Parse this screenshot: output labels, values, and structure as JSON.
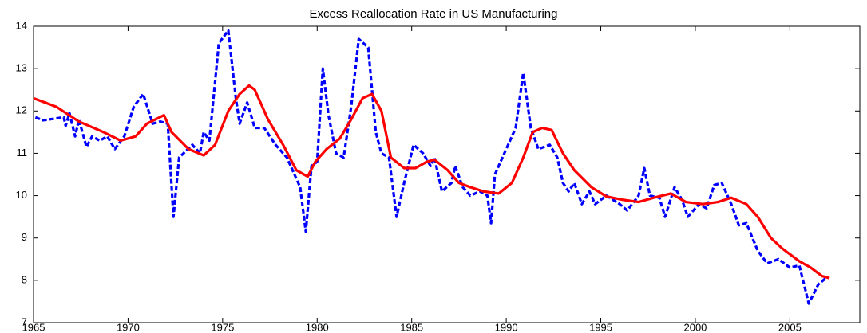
{
  "chart_data": {
    "type": "line",
    "title": "Excess Reallocation Rate in US Manufacturing",
    "xlim": [
      1965,
      2008.7
    ],
    "xticks": [
      1965,
      1970,
      1975,
      1980,
      1985,
      1990,
      1995,
      2000,
      2005
    ],
    "ylim": [
      7,
      14
    ],
    "yticks": [
      7,
      8,
      9,
      10,
      11,
      12,
      13,
      14
    ],
    "series": [
      {
        "color": "#0000ff",
        "dashed": true,
        "x": [
          1965.1,
          1965.5,
          1966.6,
          1966.7,
          1966.9,
          1967.2,
          1967.4,
          1967.8,
          1968.1,
          1968.5,
          1968.9,
          1969.3,
          1969.8,
          1970.3,
          1970.8,
          1971.3,
          1971.7,
          1972.1,
          1972.4,
          1972.7,
          1973.4,
          1973.8,
          1974.0,
          1974.3,
          1974.8,
          1975.3,
          1975.7,
          1975.9,
          1976.3,
          1976.7,
          1977.2,
          1977.8,
          1978.4,
          1978.8,
          1979.1,
          1979.4,
          1979.7,
          1980.0,
          1980.3,
          1980.6,
          1981.0,
          1981.4,
          1981.8,
          1982.2,
          1982.7,
          1983.1,
          1983.4,
          1983.8,
          1984.2,
          1984.6,
          1985.1,
          1985.6,
          1986.0,
          1986.2,
          1986.6,
          1987.1,
          1987.3,
          1987.7,
          1988.1,
          1988.6,
          1989.0,
          1989.2,
          1989.4,
          1989.9,
          1990.5,
          1990.9,
          1991.3,
          1991.7,
          1992.3,
          1992.7,
          1993.0,
          1993.3,
          1993.6,
          1994.0,
          1994.4,
          1994.7,
          1995.3,
          1996.0,
          1996.4,
          1997.0,
          1997.3,
          1997.6,
          1998.1,
          1998.4,
          1998.9,
          1999.3,
          1999.6,
          2000.2,
          2000.6,
          2001.0,
          2001.4,
          2001.9,
          2002.3,
          2002.7,
          2003.3,
          2003.8,
          2004.4,
          2005.0,
          2005.5,
          2006.0,
          2006.5,
          2006.9
        ],
        "values": [
          11.85,
          11.78,
          11.85,
          11.65,
          11.95,
          11.4,
          11.8,
          11.15,
          11.4,
          11.3,
          11.4,
          11.1,
          11.4,
          12.1,
          12.4,
          11.7,
          11.75,
          11.7,
          9.5,
          10.9,
          11.2,
          11.0,
          11.5,
          11.3,
          13.6,
          13.9,
          12.3,
          11.7,
          12.2,
          11.6,
          11.6,
          11.2,
          10.9,
          10.5,
          10.2,
          9.15,
          10.7,
          10.8,
          13.0,
          11.9,
          11.0,
          10.9,
          12.1,
          13.7,
          13.5,
          11.5,
          11.0,
          10.9,
          9.5,
          10.3,
          11.2,
          11.0,
          10.7,
          10.9,
          10.1,
          10.3,
          10.7,
          10.2,
          10.0,
          10.1,
          10.0,
          9.35,
          10.5,
          11.0,
          11.6,
          12.9,
          11.6,
          11.1,
          11.2,
          10.9,
          10.3,
          10.1,
          10.3,
          9.8,
          10.1,
          9.8,
          10.0,
          9.8,
          9.65,
          10.0,
          10.65,
          10.0,
          9.95,
          9.5,
          10.2,
          9.9,
          9.5,
          9.8,
          9.7,
          10.25,
          10.3,
          9.8,
          9.3,
          9.35,
          8.7,
          8.4,
          8.5,
          8.3,
          8.35,
          7.45,
          7.9,
          8.05
        ]
      },
      {
        "color": "#ff0000",
        "dashed": false,
        "x": [
          1965.0,
          1966.2,
          1967.4,
          1968.7,
          1969.6,
          1970.4,
          1971.0,
          1971.9,
          1972.3,
          1973.2,
          1974.0,
          1974.6,
          1975.3,
          1975.9,
          1976.4,
          1976.7,
          1977.4,
          1978.2,
          1978.9,
          1979.5,
          1979.9,
          1980.5,
          1981.2,
          1981.8,
          1982.4,
          1982.9,
          1983.4,
          1983.9,
          1984.6,
          1985.2,
          1985.8,
          1986.2,
          1986.9,
          1987.5,
          1988.1,
          1988.8,
          1989.6,
          1990.3,
          1990.9,
          1991.4,
          1991.9,
          1992.4,
          1993.0,
          1993.6,
          1994.5,
          1995.3,
          1996.2,
          1997.0,
          1997.8,
          1998.7,
          1999.5,
          2000.4,
          2001.2,
          2001.9,
          2002.7,
          2003.3,
          2004.0,
          2004.6,
          2005.5,
          2006.1,
          2006.7,
          2007.1
        ],
        "values": [
          12.3,
          12.1,
          11.75,
          11.5,
          11.3,
          11.4,
          11.7,
          11.9,
          11.5,
          11.1,
          10.95,
          11.2,
          12.0,
          12.4,
          12.6,
          12.5,
          11.8,
          11.2,
          10.6,
          10.45,
          10.8,
          11.1,
          11.35,
          11.8,
          12.3,
          12.4,
          12.0,
          10.9,
          10.65,
          10.65,
          10.8,
          10.85,
          10.6,
          10.3,
          10.2,
          10.1,
          10.05,
          10.3,
          10.9,
          11.5,
          11.6,
          11.55,
          11.0,
          10.6,
          10.2,
          9.98,
          9.9,
          9.85,
          9.95,
          10.05,
          9.85,
          9.8,
          9.85,
          9.95,
          9.8,
          9.5,
          9.0,
          8.75,
          8.45,
          8.3,
          8.1,
          8.05
        ]
      }
    ]
  }
}
